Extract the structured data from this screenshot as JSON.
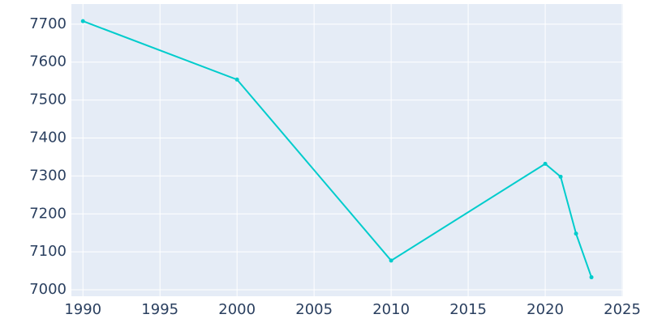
{
  "chart_data": {
    "type": "line",
    "x": [
      1990,
      2000,
      2010,
      2020,
      2021,
      2022,
      2023
    ],
    "series": [
      {
        "color": "#00cccc",
        "values": [
          7708,
          7554,
          7077,
          7332,
          7298,
          7148,
          7033
        ]
      }
    ],
    "xlim": [
      1989.25,
      2025.05
    ],
    "xticks": [
      1990,
      1995,
      2000,
      2005,
      2010,
      2015,
      2020,
      2025
    ],
    "ylim": [
      6983,
      7753
    ],
    "yticks": [
      7000,
      7100,
      7200,
      7300,
      7400,
      7500,
      7600,
      7700
    ],
    "grid": true
  }
}
